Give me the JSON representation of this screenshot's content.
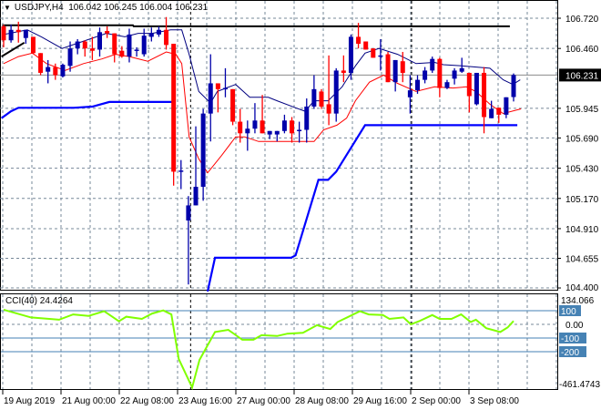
{
  "header": {
    "symbol": "USDJPY,H4",
    "open": "106.042",
    "high": "106.245",
    "low": "106.004",
    "close": "106.231"
  },
  "cci_label": {
    "name": "CCI(40)",
    "value": "24.4264"
  },
  "colors": {
    "bull": "#0000aa",
    "bear": "#ff0000",
    "upper_line": "#000080",
    "lower_line": "#ff0000",
    "support_line": "#0000ff",
    "resistance_line": "#000000",
    "cci_line": "#80ff00",
    "grid": "#778899",
    "cci_level": "#4682b4",
    "current_price_bg": "#000000"
  },
  "chart_data": [
    {
      "type": "candlestick",
      "title": "USDJPY,H4",
      "price_ticks": [
        "106.720",
        "106.460",
        "105.945",
        "105.690",
        "105.430",
        "105.170",
        "104.910",
        "104.655",
        "104.400"
      ],
      "current_price": "106.231",
      "ylim": [
        104.4,
        106.72
      ],
      "time_labels": [
        "19 Aug 2019",
        "21 Aug 00:00",
        "22 Aug 08:00",
        "23 Aug 16:00",
        "27 Aug 00:00",
        "28 Aug 08:00",
        "29 Aug 16:00",
        "2 Sep 00:00",
        "3 Sep 08:00"
      ],
      "candles_ohlc": [
        [
          106.65,
          106.665,
          106.47,
          106.53
        ],
        [
          106.53,
          106.665,
          106.51,
          106.62
        ],
        [
          106.62,
          106.69,
          106.51,
          106.6
        ],
        [
          106.55,
          106.62,
          106.5,
          106.62
        ],
        [
          106.56,
          106.56,
          106.41,
          106.42
        ],
        [
          106.42,
          106.42,
          106.23,
          106.25
        ],
        [
          106.26,
          106.36,
          106.16,
          106.3
        ],
        [
          106.3,
          106.33,
          106.19,
          106.23
        ],
        [
          106.22,
          106.33,
          106.21,
          106.32
        ],
        [
          106.31,
          106.52,
          106.26,
          106.46
        ],
        [
          106.46,
          106.54,
          106.41,
          106.52
        ],
        [
          106.52,
          106.53,
          106.39,
          106.46
        ],
        [
          106.46,
          106.56,
          106.36,
          106.44
        ],
        [
          106.45,
          106.64,
          106.39,
          106.6
        ],
        [
          106.61,
          106.65,
          106.55,
          106.59
        ],
        [
          106.59,
          106.59,
          106.34,
          106.41
        ],
        [
          106.44,
          106.48,
          106.38,
          106.39
        ],
        [
          106.39,
          106.63,
          106.34,
          106.58
        ],
        [
          106.44,
          106.47,
          106.39,
          106.45
        ],
        [
          106.41,
          106.63,
          106.39,
          106.57
        ],
        [
          106.56,
          106.64,
          106.52,
          106.59
        ],
        [
          106.58,
          106.65,
          106.56,
          106.62
        ],
        [
          106.62,
          106.73,
          106.45,
          106.49
        ],
        [
          106.5,
          106.5,
          105.28,
          105.4
        ],
        [
          105.4,
          105.5,
          105.25,
          105.41
        ],
        [
          104.98,
          105.19,
          104.43,
          105.11
        ],
        [
          105.11,
          105.79,
          105.11,
          105.27
        ],
        [
          105.27,
          105.94,
          105.15,
          105.9
        ],
        [
          105.9,
          106.41,
          105.66,
          106.16
        ],
        [
          106.16,
          106.16,
          105.91,
          106.11
        ],
        [
          106.11,
          106.29,
          106.04,
          106.12
        ],
        [
          106.11,
          106.11,
          105.8,
          105.83
        ],
        [
          105.83,
          105.94,
          105.65,
          105.73
        ],
        [
          105.73,
          105.84,
          105.58,
          105.77
        ],
        [
          105.77,
          105.99,
          105.73,
          105.84
        ],
        [
          105.84,
          106.06,
          105.73,
          105.73
        ],
        [
          105.72,
          105.75,
          105.68,
          105.75
        ],
        [
          105.72,
          105.75,
          105.66,
          105.75
        ],
        [
          105.75,
          105.89,
          105.73,
          105.84
        ],
        [
          105.84,
          105.87,
          105.65,
          105.73
        ],
        [
          105.75,
          105.83,
          105.65,
          105.76
        ],
        [
          105.76,
          106.03,
          105.65,
          105.96
        ],
        [
          105.96,
          106.23,
          105.94,
          106.11
        ],
        [
          106.09,
          106.11,
          105.94,
          105.96
        ],
        [
          105.98,
          106.4,
          105.8,
          105.9
        ],
        [
          105.9,
          106.29,
          105.83,
          106.27
        ],
        [
          106.27,
          106.4,
          106.17,
          106.25
        ],
        [
          106.25,
          106.58,
          106.19,
          106.56
        ],
        [
          106.56,
          106.68,
          106.46,
          106.5
        ],
        [
          106.52,
          106.52,
          106.45,
          106.45
        ],
        [
          106.46,
          106.46,
          106.38,
          106.38
        ],
        [
          106.4,
          106.54,
          106.27,
          106.4
        ],
        [
          106.41,
          106.43,
          106.17,
          106.17
        ],
        [
          106.17,
          106.36,
          106.09,
          106.36
        ],
        [
          106.35,
          106.43,
          106.17,
          106.25
        ],
        [
          106.04,
          106.23,
          105.9,
          106.1
        ],
        [
          106.1,
          106.23,
          106.07,
          106.19
        ],
        [
          106.19,
          106.3,
          106.16,
          106.27
        ],
        [
          106.27,
          106.39,
          106.25,
          106.37
        ],
        [
          106.37,
          106.38,
          106.04,
          106.12
        ],
        [
          106.12,
          106.19,
          106.11,
          106.17
        ],
        [
          106.2,
          106.29,
          106.15,
          106.27
        ],
        [
          106.26,
          106.38,
          106.25,
          106.29
        ],
        [
          106.25,
          106.25,
          105.91,
          106.05
        ],
        [
          105.98,
          106.25,
          105.97,
          106.25
        ],
        [
          106.25,
          106.3,
          105.73,
          105.87
        ],
        [
          105.86,
          106.01,
          105.86,
          105.94
        ],
        [
          105.95,
          105.95,
          105.82,
          105.89
        ],
        [
          105.89,
          106.04,
          105.86,
          106.04
        ],
        [
          106.042,
          106.245,
          106.004,
          106.231
        ]
      ],
      "upper_line": [
        [
          0,
          106.58
        ],
        [
          3.2,
          106.62
        ],
        [
          5.1,
          106.56
        ],
        [
          7.9,
          106.46
        ],
        [
          10.7,
          106.52
        ],
        [
          13.9,
          106.59
        ],
        [
          16.4,
          106.56
        ],
        [
          18.2,
          106.59
        ],
        [
          20.1,
          106.59
        ],
        [
          22.6,
          106.62
        ],
        [
          24.1,
          106.62
        ],
        [
          25.1,
          106.41
        ],
        [
          26.4,
          106.09
        ],
        [
          28,
          105.99
        ],
        [
          28.9,
          106.09
        ],
        [
          30.1,
          106.12
        ],
        [
          31.4,
          106.15
        ],
        [
          33.3,
          106.04
        ],
        [
          35.8,
          106.04
        ],
        [
          37,
          106.01
        ],
        [
          39.5,
          105.95
        ],
        [
          40.8,
          105.92
        ],
        [
          42,
          106.01
        ],
        [
          43.9,
          106.01
        ],
        [
          45.8,
          106.13
        ],
        [
          47.6,
          106.31
        ],
        [
          48.9,
          106.42
        ],
        [
          50.8,
          106.46
        ],
        [
          53.3,
          106.41
        ],
        [
          55.8,
          106.33
        ],
        [
          58.3,
          106.34
        ],
        [
          59.5,
          106.32
        ],
        [
          62,
          106.31
        ],
        [
          65.8,
          106.29
        ],
        [
          67.6,
          106.19
        ],
        [
          68.9,
          106.15
        ],
        [
          69.9,
          106.19
        ]
      ],
      "lower_line": [
        [
          0,
          106.33
        ],
        [
          2,
          106.39
        ],
        [
          3.9,
          106.42
        ],
        [
          5.8,
          106.33
        ],
        [
          8.3,
          106.27
        ],
        [
          10.8,
          106.33
        ],
        [
          13.3,
          106.37
        ],
        [
          15.1,
          106.41
        ],
        [
          17,
          106.39
        ],
        [
          19.5,
          106.35
        ],
        [
          22,
          106.43
        ],
        [
          23.3,
          106.41
        ],
        [
          24.1,
          106.33
        ],
        [
          25.1,
          105.7
        ],
        [
          26.4,
          105.51
        ],
        [
          27.6,
          105.39
        ],
        [
          29.5,
          105.54
        ],
        [
          31.4,
          105.7
        ],
        [
          32.6,
          105.7
        ],
        [
          34.5,
          105.66
        ],
        [
          42,
          105.66
        ],
        [
          43.3,
          105.76
        ],
        [
          45.1,
          105.8
        ],
        [
          46.4,
          105.86
        ],
        [
          47.6,
          106.01
        ],
        [
          49.5,
          106.17
        ],
        [
          51.4,
          106.23
        ],
        [
          53.3,
          106.16
        ],
        [
          55.8,
          106.09
        ],
        [
          58.3,
          106.13
        ],
        [
          60.8,
          106.12
        ],
        [
          62.6,
          106.13
        ],
        [
          63.9,
          106.09
        ],
        [
          65.8,
          105.98
        ],
        [
          67.6,
          105.9
        ],
        [
          70,
          105.94
        ]
      ],
      "support_lines": [
        [
          [
            -0.3,
            105.86
          ],
          [
            1,
            105.92
          ],
          [
            2,
            105.95
          ],
          [
            9.5,
            105.95
          ],
          [
            12,
            105.96
          ],
          [
            14.3,
            106.0
          ],
          [
            23,
            106.0
          ]
        ],
        [
          [
            27.6,
            104.37
          ],
          [
            28.6,
            104.66
          ],
          [
            38.9,
            104.66
          ],
          [
            39.5,
            104.68
          ],
          [
            42.6,
            105.33
          ],
          [
            43.9,
            105.33
          ],
          [
            45,
            105.4
          ],
          [
            48.9,
            105.8
          ],
          [
            69.5,
            105.8
          ]
        ]
      ],
      "resistance_lines": [
        [
          [
            -0.2,
            106.66
          ],
          [
            17.5,
            106.66
          ],
          [
            17.6,
            106.65
          ],
          [
            68.5,
            106.65
          ]
        ],
        [
          [
            -0.3,
            106.39
          ],
          [
            2.8,
            106.51
          ]
        ]
      ],
      "separators": [
        25.3,
        55.2
      ]
    },
    {
      "type": "line",
      "title": "CCI(40)",
      "ylim": [
        -461.4743,
        134.066
      ],
      "tick_labels": {
        "max": "134.066",
        "level_100": "100",
        "zero": "0.00",
        "level_m100": "-100",
        "level_m200": "-200",
        "min": "-461.4743"
      },
      "levels": [
        100,
        -100,
        -200
      ],
      "points": [
        [
          0,
          107
        ],
        [
          3.7,
          51
        ],
        [
          7.5,
          34
        ],
        [
          9.4,
          73
        ],
        [
          11.5,
          62
        ],
        [
          13.6,
          96
        ],
        [
          15.6,
          23
        ],
        [
          16.6,
          56
        ],
        [
          18.7,
          40
        ],
        [
          20.1,
          79
        ],
        [
          21.6,
          102
        ],
        [
          22.7,
          73
        ],
        [
          23.7,
          -254
        ],
        [
          25.5,
          -461.47
        ],
        [
          26.5,
          -260
        ],
        [
          28.6,
          -56
        ],
        [
          30.4,
          -40
        ],
        [
          32.3,
          -113
        ],
        [
          33.8,
          -113
        ],
        [
          34.9,
          -79
        ],
        [
          37,
          -85
        ],
        [
          38.4,
          -68
        ],
        [
          40.5,
          -62
        ],
        [
          42.4,
          -6
        ],
        [
          44.2,
          -34
        ],
        [
          45.2,
          17
        ],
        [
          48.2,
          96
        ],
        [
          49.4,
          73
        ],
        [
          51.3,
          68
        ],
        [
          52.2,
          40
        ],
        [
          54.1,
          51
        ],
        [
          55.1,
          0
        ],
        [
          56.2,
          23
        ],
        [
          58,
          68
        ],
        [
          59,
          40
        ],
        [
          60.6,
          40
        ],
        [
          61.9,
          73
        ],
        [
          63.2,
          17
        ],
        [
          63.9,
          34
        ],
        [
          65.3,
          -28
        ],
        [
          67.2,
          -56
        ],
        [
          68.2,
          -23
        ],
        [
          69,
          24.43
        ]
      ]
    }
  ]
}
